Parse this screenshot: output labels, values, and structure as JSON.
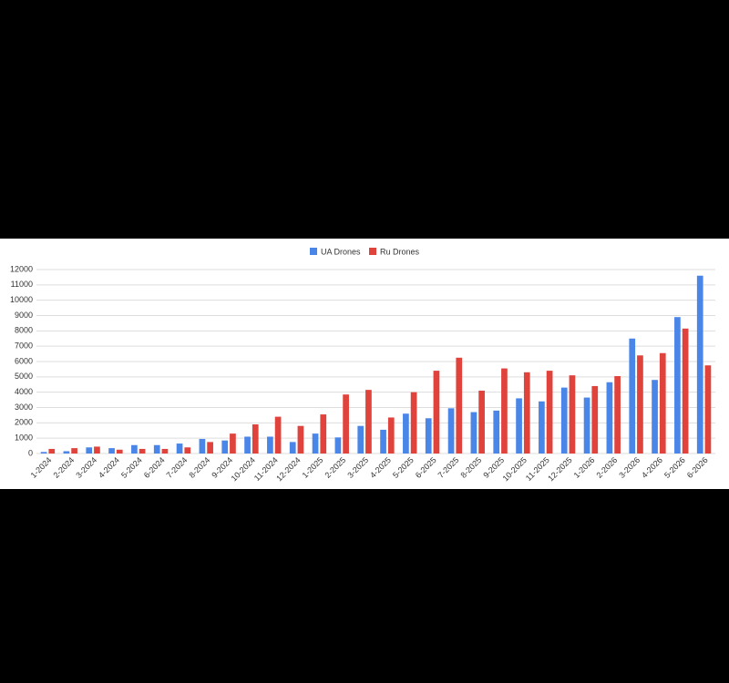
{
  "chart_data": {
    "type": "bar",
    "categories": [
      "1-2024",
      "2-2024",
      "3-2024",
      "4-2024",
      "5-2024",
      "6-2024",
      "7-2024",
      "8-2024",
      "9-2024",
      "10-2024",
      "11-2024",
      "12-2024",
      "1-2025",
      "2-2025",
      "3-2025",
      "4-2025",
      "5-2025",
      "6-2025",
      "7-2025",
      "8-2025",
      "9-2025",
      "10-2025",
      "11-2025",
      "12-2025",
      "1-2026",
      "2-2026",
      "3-2026",
      "4-2026",
      "5-2026",
      "6-2026"
    ],
    "series": [
      {
        "name": "UA Drones",
        "color": "#4a86e8",
        "values": [
          100,
          150,
          400,
          350,
          550,
          550,
          650,
          950,
          850,
          1100,
          1100,
          750,
          1300,
          1050,
          1800,
          1550,
          2600,
          2300,
          2950,
          2700,
          2800,
          3600,
          3400,
          4300,
          3650,
          4650,
          7500,
          4800,
          8900,
          11600
        ]
      },
      {
        "name": "Ru Drones",
        "color": "#e0433c",
        "values": [
          300,
          350,
          450,
          250,
          300,
          300,
          400,
          750,
          1300,
          1900,
          2400,
          1800,
          2550,
          3850,
          4150,
          2350,
          4000,
          5400,
          6250,
          4100,
          5550,
          5300,
          5400,
          5100,
          4400,
          5050,
          6400,
          6550,
          8150,
          5750
        ]
      }
    ],
    "ylim": [
      0,
      12000
    ],
    "yticks": [
      0,
      1000,
      2000,
      3000,
      4000,
      5000,
      6000,
      7000,
      8000,
      9000,
      10000,
      11000,
      12000
    ],
    "grid": true,
    "legend": "top"
  }
}
